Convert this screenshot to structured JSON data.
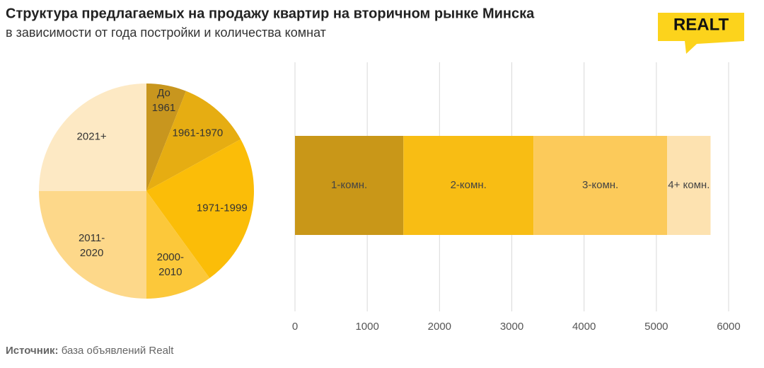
{
  "title": "Структура предлагаемых на продажу квартир на вторичном рынке Минска",
  "subtitle": "в зависимости от года постройки и количества комнат",
  "logo": "REALT",
  "source_label": "Источник:",
  "source_text": "база объявлений Realt",
  "chart_data": [
    {
      "type": "pie",
      "categories": [
        "До 1961",
        "1961-1970",
        "1971-1999",
        "2000-2010",
        "2011-2020",
        "2021+"
      ],
      "values": [
        6,
        11,
        23,
        10,
        25,
        25
      ],
      "colors": [
        "#c8961e",
        "#e6ad12",
        "#fbbd08",
        "#fcc83a",
        "#fdd88a",
        "#fde9c4"
      ]
    },
    {
      "type": "bar",
      "orientation": "horizontal",
      "stacked": true,
      "categories": [
        null
      ],
      "series": [
        {
          "name": "1-комн.",
          "color": "#c99718",
          "values": [
            1500
          ]
        },
        {
          "name": "2-комн.",
          "color": "#f8bd14",
          "values": [
            1800
          ]
        },
        {
          "name": "3-комн.",
          "color": "#fcca5a",
          "values": [
            1850
          ]
        },
        {
          "name": "4+ комн.",
          "color": "#fde2b0",
          "values": [
            600
          ]
        }
      ],
      "xlim": [
        0,
        6000
      ],
      "xticks": [
        0,
        1000,
        2000,
        3000,
        4000,
        5000,
        6000
      ],
      "grid": true
    }
  ]
}
